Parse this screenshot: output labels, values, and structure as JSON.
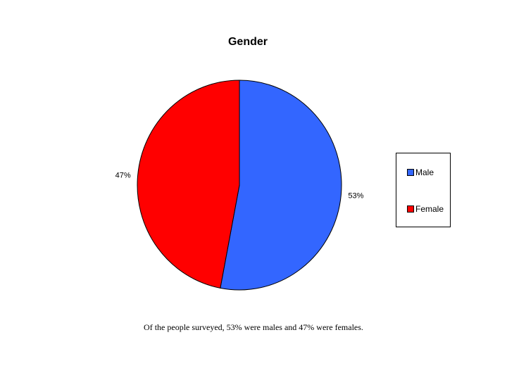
{
  "chart_data": {
    "type": "pie",
    "title": "Gender",
    "categories": [
      "Male",
      "Female"
    ],
    "values": [
      53,
      47
    ],
    "value_labels": [
      "53%",
      "47%"
    ],
    "colors": [
      "#3366ff",
      "#ff0000"
    ],
    "legend_position": "right",
    "caption": "Of the people surveyed, 53% were males and 47% were females."
  },
  "legend": {
    "items": [
      {
        "label": "Male",
        "color": "#3366ff"
      },
      {
        "label": "Female",
        "color": "#ff0000"
      }
    ]
  }
}
